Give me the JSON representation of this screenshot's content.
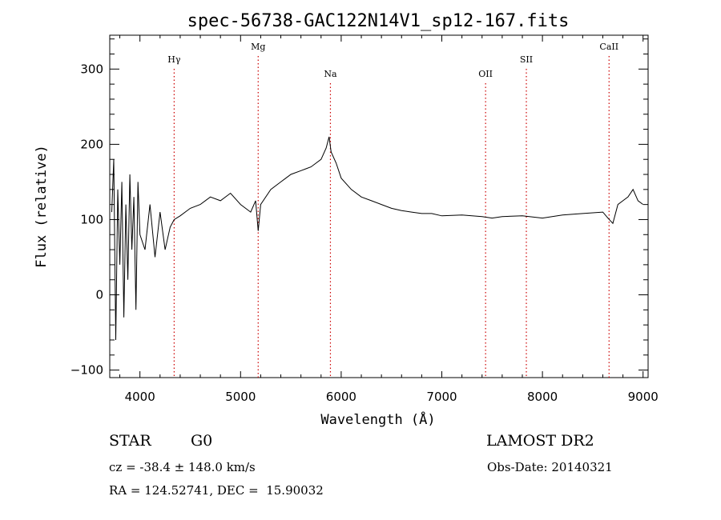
{
  "title": "spec-56738-GAC122N14V1_sp12-167.fits",
  "info": {
    "class": "STAR",
    "subclass": "G0",
    "survey": "LAMOST DR2",
    "cz": "cz = -38.4 ± 148.0 km/s",
    "obs_date": "Obs-Date: 20140321",
    "coords": "RA = 124.52741, DEC =  15.90032"
  },
  "chart_data": {
    "type": "line",
    "xlabel": "Wavelength (Å)",
    "ylabel": "Flux (relative)",
    "xlim": [
      3700,
      9050
    ],
    "ylim": [
      -110,
      345
    ],
    "xticks": [
      4000,
      5000,
      6000,
      7000,
      8000,
      9000
    ],
    "yticks": [
      -100,
      0,
      100,
      200,
      300
    ],
    "grid": false,
    "line_color": "#000000",
    "marker_color": "#cc0000",
    "spectral_lines": [
      {
        "label": "Hγ",
        "x": 4340,
        "level": "high"
      },
      {
        "label": "Mg",
        "x": 5175,
        "level": "top"
      },
      {
        "label": "Na",
        "x": 5893,
        "level": "low"
      },
      {
        "label": "OII",
        "x": 7435,
        "level": "low"
      },
      {
        "label": "SII",
        "x": 7840,
        "level": "high"
      },
      {
        "label": "CaII",
        "x": 8662,
        "level": "top"
      }
    ],
    "series": [
      {
        "x": [
          3720,
          3740,
          3760,
          3780,
          3800,
          3820,
          3840,
          3860,
          3880,
          3900,
          3920,
          3940,
          3960,
          3980,
          4000,
          4050,
          4100,
          4150,
          4200,
          4250,
          4300,
          4340,
          4400,
          4500,
          4600,
          4700,
          4800,
          4900,
          5000,
          5100,
          5150,
          5175,
          5200,
          5300,
          5400,
          5450,
          5500,
          5600,
          5700,
          5800,
          5850,
          5880,
          5900,
          5950,
          6000,
          6100,
          6200,
          6300,
          6400,
          6500,
          6600,
          6700,
          6800,
          6900,
          7000,
          7200,
          7400,
          7500,
          7600,
          7800,
          8000,
          8200,
          8400,
          8600,
          8650,
          8700,
          8750,
          8800,
          8850,
          8900,
          8950,
          9000
        ],
        "y": [
          110,
          180,
          -60,
          140,
          40,
          150,
          -30,
          120,
          20,
          160,
          60,
          130,
          -20,
          150,
          80,
          60,
          120,
          50,
          110,
          60,
          90,
          100,
          105,
          115,
          120,
          130,
          125,
          135,
          120,
          110,
          125,
          85,
          120,
          140,
          150,
          155,
          160,
          165,
          170,
          180,
          195,
          210,
          190,
          175,
          155,
          140,
          130,
          125,
          120,
          115,
          112,
          110,
          108,
          108,
          105,
          106,
          104,
          102,
          104,
          105,
          102,
          106,
          108,
          110,
          102,
          95,
          120,
          125,
          130,
          140,
          125,
          120
        ]
      }
    ]
  }
}
